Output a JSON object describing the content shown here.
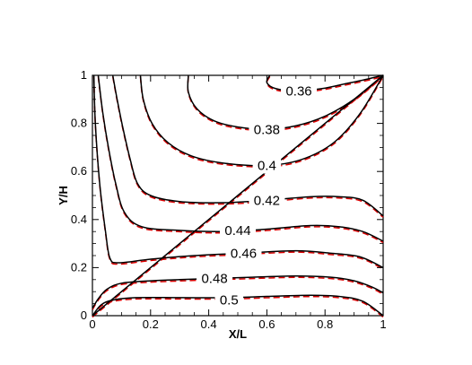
{
  "chart_data": {
    "type": "contour",
    "xlabel": "X/L",
    "ylabel": "Y/H",
    "xlim": [
      0,
      1
    ],
    "ylim": [
      0,
      1
    ],
    "x_ticks": [
      "0",
      "0.2",
      "0.4",
      "0.6",
      "0.8",
      "1"
    ],
    "y_ticks": [
      "0",
      "0.2",
      "0.4",
      "0.6",
      "0.8",
      "1"
    ],
    "grid": false,
    "colors": {
      "solid": "#000000",
      "dashed": "#dd0000"
    },
    "series_styles": {
      "solid": "solid",
      "dashed": "dashed"
    },
    "levels": [
      {
        "label": "0.36",
        "label_at": [
          0.71,
          0.935
        ],
        "points": [
          [
            0.61,
            1.0
          ],
          [
            0.6,
            0.97
          ],
          [
            0.63,
            0.945
          ],
          [
            0.7,
            0.935
          ],
          [
            0.79,
            0.945
          ],
          [
            0.87,
            0.965
          ],
          [
            0.93,
            0.98
          ],
          [
            1.0,
            1.0
          ]
        ]
      },
      {
        "label": "0.38",
        "label_at": [
          0.6,
          0.775
        ],
        "points": [
          [
            0.33,
            1.0
          ],
          [
            0.33,
            0.93
          ],
          [
            0.36,
            0.86
          ],
          [
            0.42,
            0.81
          ],
          [
            0.5,
            0.785
          ],
          [
            0.6,
            0.775
          ],
          [
            0.7,
            0.79
          ],
          [
            0.8,
            0.83
          ],
          [
            0.9,
            0.9
          ],
          [
            1.0,
            1.0
          ]
        ]
      },
      {
        "label": "0.4",
        "label_at": [
          0.6,
          0.625
        ],
        "points": [
          [
            0.165,
            1.0
          ],
          [
            0.175,
            0.9
          ],
          [
            0.205,
            0.8
          ],
          [
            0.26,
            0.72
          ],
          [
            0.34,
            0.665
          ],
          [
            0.45,
            0.635
          ],
          [
            0.6,
            0.625
          ],
          [
            0.72,
            0.65
          ],
          [
            0.83,
            0.72
          ],
          [
            0.92,
            0.84
          ],
          [
            1.0,
            1.0
          ]
        ]
      },
      {
        "label": "0.42",
        "label_at": [
          0.6,
          0.48
        ],
        "points": [
          [
            0.07,
            1.0
          ],
          [
            0.085,
            0.9
          ],
          [
            0.105,
            0.78
          ],
          [
            0.13,
            0.65
          ],
          [
            0.155,
            0.55
          ],
          [
            0.2,
            0.5
          ],
          [
            0.3,
            0.475
          ],
          [
            0.45,
            0.47
          ],
          [
            0.6,
            0.48
          ],
          [
            0.75,
            0.495
          ],
          [
            0.85,
            0.495
          ],
          [
            0.93,
            0.48
          ],
          [
            1.0,
            0.415
          ]
        ]
      },
      {
        "label": "0.44",
        "label_at": [
          0.5,
          0.355
        ],
        "points": [
          [
            0.02,
            1.0
          ],
          [
            0.035,
            0.85
          ],
          [
            0.055,
            0.7
          ],
          [
            0.08,
            0.55
          ],
          [
            0.11,
            0.43
          ],
          [
            0.17,
            0.37
          ],
          [
            0.3,
            0.355
          ],
          [
            0.45,
            0.35
          ],
          [
            0.6,
            0.36
          ],
          [
            0.75,
            0.375
          ],
          [
            0.85,
            0.37
          ],
          [
            0.93,
            0.35
          ],
          [
            1.0,
            0.31
          ]
        ]
      },
      {
        "label": "0.46",
        "label_at": [
          0.52,
          0.26
        ],
        "points": [
          [
            0.005,
            1.0
          ],
          [
            0.01,
            0.8
          ],
          [
            0.025,
            0.55
          ],
          [
            0.045,
            0.35
          ],
          [
            0.06,
            0.24
          ],
          [
            0.09,
            0.22
          ],
          [
            0.2,
            0.235
          ],
          [
            0.35,
            0.25
          ],
          [
            0.52,
            0.26
          ],
          [
            0.7,
            0.27
          ],
          [
            0.82,
            0.26
          ],
          [
            0.92,
            0.245
          ],
          [
            1.0,
            0.2
          ]
        ]
      },
      {
        "label": "0.48",
        "label_at": [
          0.42,
          0.155
        ],
        "points": [
          [
            0.0,
            0.03
          ],
          [
            0.02,
            0.07
          ],
          [
            0.05,
            0.11
          ],
          [
            0.1,
            0.135
          ],
          [
            0.2,
            0.145
          ],
          [
            0.3,
            0.15
          ],
          [
            0.42,
            0.155
          ],
          [
            0.55,
            0.16
          ],
          [
            0.7,
            0.165
          ],
          [
            0.82,
            0.16
          ],
          [
            0.9,
            0.145
          ],
          [
            0.96,
            0.12
          ],
          [
            1.0,
            0.095
          ]
        ]
      },
      {
        "label": "0.5",
        "label_at": [
          0.47,
          0.065
        ],
        "points": [
          [
            0.0,
            0.0
          ],
          [
            0.03,
            0.045
          ],
          [
            0.07,
            0.065
          ],
          [
            0.15,
            0.075
          ],
          [
            0.3,
            0.075
          ],
          [
            0.47,
            0.075
          ],
          [
            0.6,
            0.08
          ],
          [
            0.75,
            0.085
          ],
          [
            0.85,
            0.08
          ],
          [
            0.93,
            0.06
          ],
          [
            1.0,
            0.0
          ]
        ]
      },
      {
        "label": "",
        "label_at": null,
        "points": [
          [
            0.0,
            0.0
          ],
          [
            1.0,
            1.0
          ]
        ]
      }
    ]
  }
}
